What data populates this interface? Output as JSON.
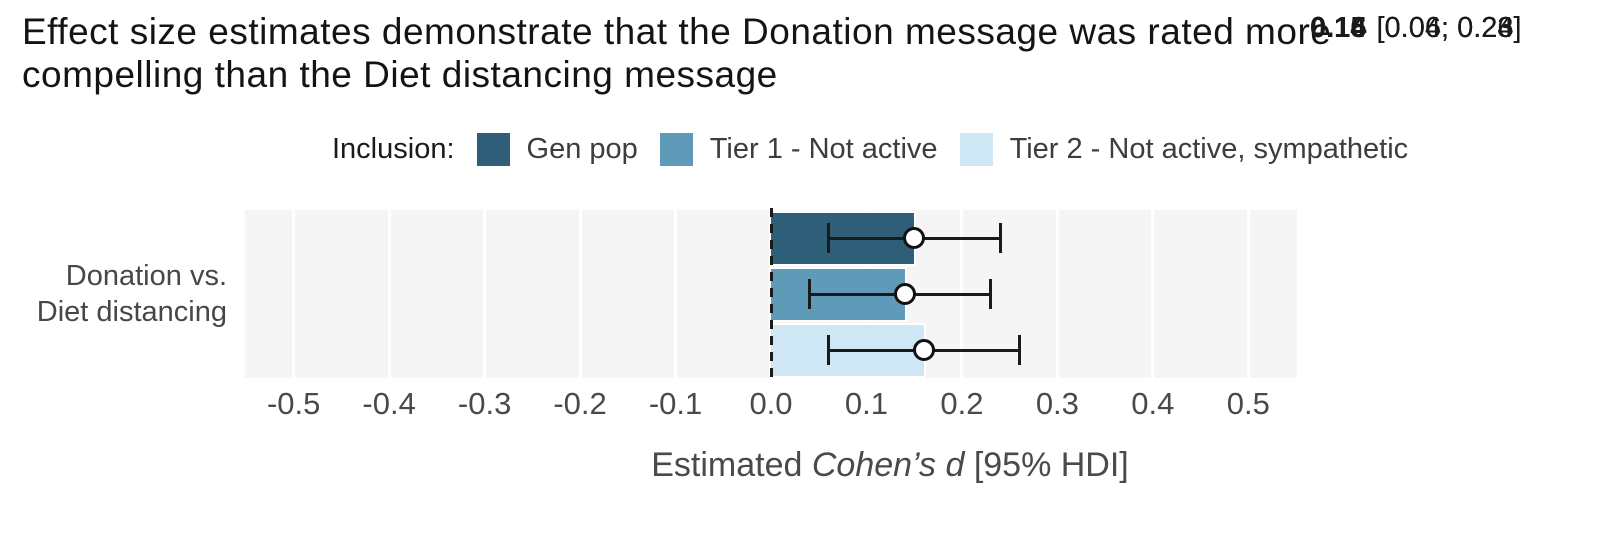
{
  "title": "Effect size estimates demonstrate that the Donation message was rated more\ncompelling than the Diet distancing message",
  "legend": {
    "label": "Inclusion:",
    "items": [
      {
        "label": "Gen pop",
        "color": "#2f5e78"
      },
      {
        "label": "Tier 1 - Not active",
        "color": "#609ab9"
      },
      {
        "label": "Tier 2 - Not active, sympathetic",
        "color": "#cfe6f4"
      }
    ]
  },
  "chart_data": {
    "type": "bar",
    "orientation": "horizontal",
    "title": "Effect size estimates demonstrate that the Donation message was rated more compelling than the Diet distancing message",
    "group_label": "Donation vs.\nDiet distancing",
    "categories": [
      "Gen pop",
      "Tier 1 - Not active",
      "Tier 2 - Not active, sympathetic"
    ],
    "series": [
      {
        "name": "Gen pop",
        "estimate": 0.15,
        "hdi_low": 0.06,
        "hdi_high": 0.24,
        "color": "#2f5e78",
        "value_label": "0.15",
        "interval_label": "[0.06; 0.24]"
      },
      {
        "name": "Tier 1 - Not active",
        "estimate": 0.14,
        "hdi_low": 0.04,
        "hdi_high": 0.23,
        "color": "#609ab9",
        "value_label": "0.14",
        "interval_label": "[0.04; 0.23]"
      },
      {
        "name": "Tier 2 - Not active, sympathetic",
        "estimate": 0.16,
        "hdi_low": 0.06,
        "hdi_high": 0.26,
        "color": "#cfe6f4",
        "value_label": "0.16",
        "interval_label": "[0.06; 0.26]"
      }
    ],
    "x_ticks": [
      "-0.5",
      "-0.4",
      "-0.3",
      "-0.2",
      "-0.1",
      "0.0",
      "0.1",
      "0.2",
      "0.3",
      "0.4",
      "0.5"
    ],
    "xlim": [
      -0.551,
      0.551
    ],
    "xlabel": "Estimated Cohen’s d [95% HDI]",
    "xlabel_parts": [
      {
        "text": "Estimated ",
        "italic": false
      },
      {
        "text": "Cohen’s d",
        "italic": true
      },
      {
        "text": " [95% HDI]",
        "italic": false
      }
    ],
    "zero_reference_line": 0.0,
    "grid": true,
    "grid_color": "#ffffff",
    "panel_bg": "#f5f5f5",
    "legend_position": "top",
    "errorbar_color": "#1a1a1a"
  }
}
